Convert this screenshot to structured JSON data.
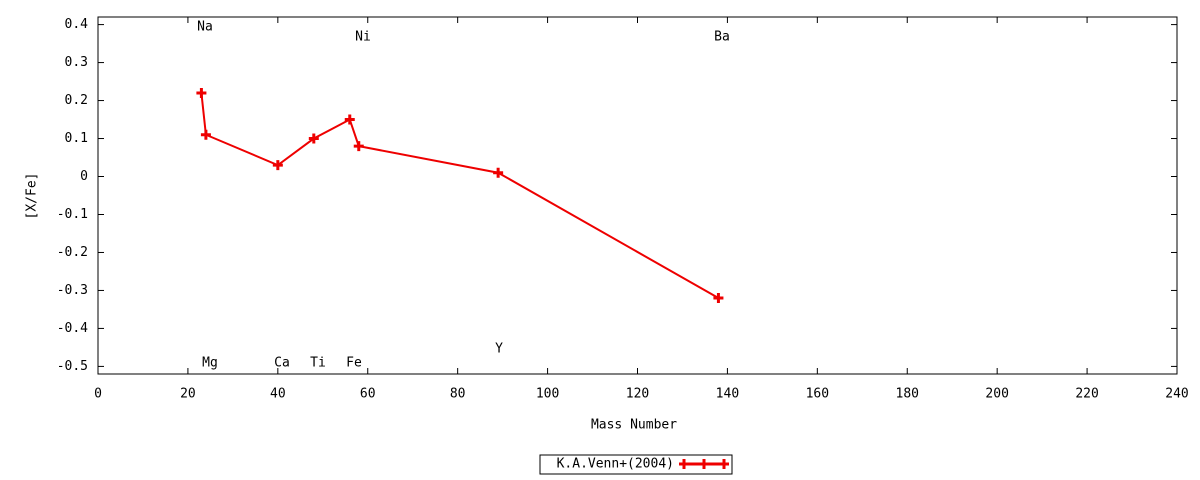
{
  "chart_data": {
    "type": "line",
    "x_label": "Mass Number",
    "y_label": "[X/Fe]",
    "x": [
      23,
      24,
      40,
      48,
      56,
      58,
      89,
      138
    ],
    "series": [
      {
        "name": "K.A.Venn+(2004)",
        "color": "#ee0000",
        "values": [
          0.22,
          0.11,
          0.03,
          0.1,
          0.15,
          0.08,
          0.01,
          -0.32
        ]
      }
    ],
    "annotations": [
      "Na",
      "Mg",
      "Ca",
      "Ti",
      "Fe",
      "Ni",
      "Y",
      "Ba"
    ],
    "xlim": [
      0,
      240
    ],
    "xticks": [
      0,
      20,
      40,
      60,
      80,
      100,
      120,
      140,
      160,
      180,
      200,
      220,
      240
    ],
    "ylim": [
      -0.52,
      0.42
    ],
    "yticks": [
      -0.5,
      -0.4,
      -0.3,
      -0.2,
      -0.1,
      0,
      0.1,
      0.2,
      0.3,
      0.4
    ],
    "grid": false,
    "legend": "bottom"
  }
}
